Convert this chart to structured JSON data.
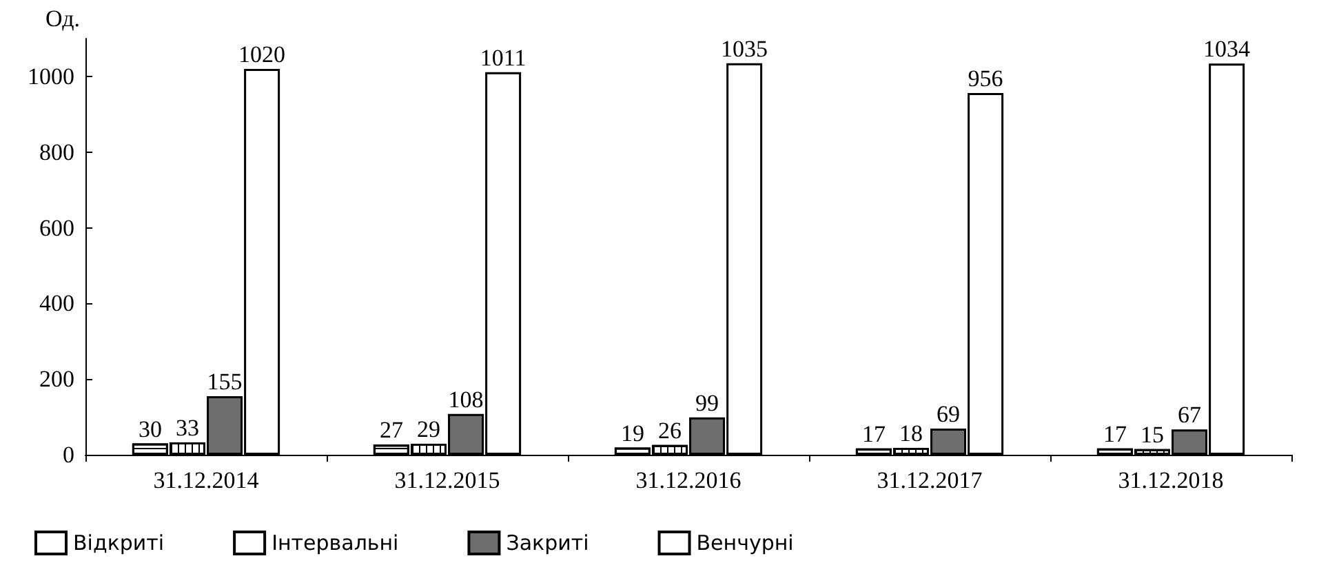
{
  "chart_data": {
    "type": "bar",
    "ylabel": "Од.",
    "categories": [
      "31.12.2014",
      "31.12.2015",
      "31.12.2016",
      "31.12.2017",
      "31.12.2018"
    ],
    "series": [
      {
        "name": "Відкриті",
        "color": "#ffffff",
        "values": [
          30,
          27,
          19,
          17,
          17
        ]
      },
      {
        "name": "Інтервальні",
        "color": "#ffffff",
        "values": [
          33,
          29,
          26,
          18,
          15
        ]
      },
      {
        "name": "Закриті",
        "color": "#6e6e6e",
        "values": [
          155,
          108,
          99,
          69,
          67
        ]
      },
      {
        "name": "Венчурні",
        "color": "#ffffff",
        "values": [
          1020,
          1011,
          1035,
          956,
          1034
        ]
      }
    ],
    "ylim": [
      0,
      1100
    ],
    "yticks": [
      0,
      200,
      400,
      600,
      800,
      1000
    ],
    "grid": false,
    "legend": "bottom",
    "data_labels": true
  }
}
